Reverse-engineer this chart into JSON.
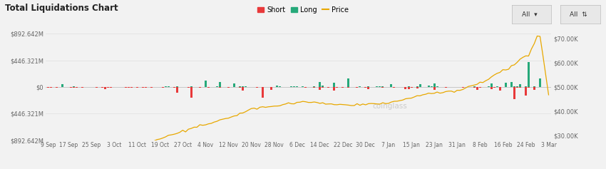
{
  "title": "Total Liquidations Chart",
  "background_color": "#f0f0f0",
  "left_ylim": [
    -892.642,
    892.642
  ],
  "left_yticks": [
    892.642,
    446.321,
    0,
    -446.321,
    -892.642
  ],
  "left_yticklabels": [
    "$892.642M",
    "$446.321M",
    "$0",
    "$446.321M",
    "$892.642M"
  ],
  "right_ylim": [
    28000,
    72000
  ],
  "right_yticks": [
    30000,
    40000,
    50000,
    60000,
    70000
  ],
  "right_yticklabels": [
    "$30.00K",
    "$40.00K",
    "$50.00K",
    "$60.00K",
    "$70.00K"
  ],
  "x_labels": [
    "9 Sep",
    "17 Sep",
    "25 Sep",
    "3 Oct",
    "11 Oct",
    "19 Oct",
    "27 Oct",
    "4 Nov",
    "12 Nov",
    "20 Nov",
    "28 Nov",
    "6 Dec",
    "14 Dec",
    "22 Dec",
    "30 Dec",
    "7 Jan",
    "15 Jan",
    "23 Jan",
    "31 Jan",
    "8 Feb",
    "16 Feb",
    "24 Feb",
    "3 Mar"
  ],
  "short_color": "#e8393a",
  "long_color": "#26a97a",
  "price_color": "#e8a800",
  "watermark": "coinglass"
}
